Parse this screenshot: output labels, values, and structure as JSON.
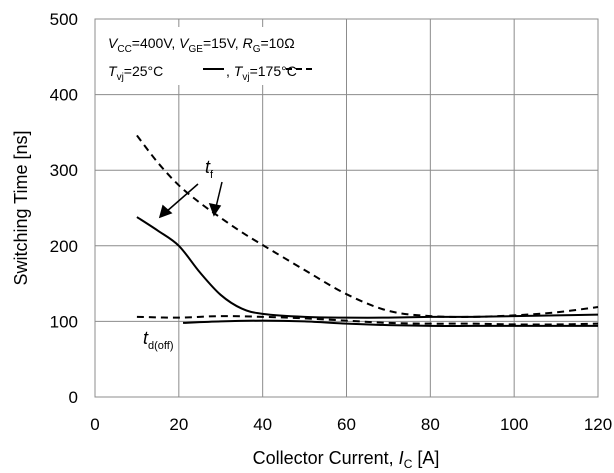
{
  "chart_data": {
    "type": "line",
    "xlim": [
      0,
      120
    ],
    "ylim": [
      0,
      500
    ],
    "x_ticks": [
      0,
      20,
      40,
      60,
      80,
      100,
      120
    ],
    "y_ticks": [
      0,
      100,
      200,
      300,
      400,
      500
    ],
    "grid": true,
    "legend_position": "top-left",
    "xlabel": {
      "main": "Collector Current, ",
      "var": "I",
      "sub": "C",
      "unit": " [A]"
    },
    "ylabel": "Switching Time [ns]",
    "conditions": {
      "vcc": {
        "var": "V",
        "sub": "CC",
        "val": "=400V, "
      },
      "vge": {
        "var": "V",
        "sub": "GE",
        "val": "=15V, "
      },
      "rg": {
        "var": "R",
        "sub": "G",
        "val": "=10Ω"
      }
    },
    "temperature_legend": {
      "tvj_25": {
        "var": "T",
        "sub": "vj",
        "val": "=25°C"
      },
      "sep": ", ",
      "tvj_175": {
        "var": "T",
        "sub": "vj",
        "val": "=175°C"
      }
    },
    "labels": {
      "tf": {
        "var": "t",
        "sub": "f"
      },
      "tdoff": {
        "var": "t",
        "sub": "d(off)"
      }
    },
    "series": [
      {
        "id": "tf-25",
        "style": "solid",
        "x": [
          10,
          15,
          20,
          25,
          30,
          35,
          40,
          50,
          60,
          70,
          80,
          90,
          100,
          110,
          120
        ],
        "y": [
          238,
          220,
          200,
          165,
          135,
          117,
          110,
          106,
          105,
          105,
          106,
          106,
          107,
          108,
          109
        ]
      },
      {
        "id": "tf-175",
        "style": "dashed",
        "x": [
          10,
          15,
          20,
          25,
          30,
          35,
          40,
          50,
          60,
          70,
          80,
          90,
          100,
          110,
          120
        ],
        "y": [
          346,
          310,
          280,
          257,
          237,
          218,
          201,
          168,
          136,
          114,
          107,
          106,
          108,
          112,
          119
        ]
      },
      {
        "id": "tdoff-25",
        "style": "solid",
        "x": [
          21,
          30,
          40,
          50,
          60,
          70,
          80,
          90,
          100,
          110,
          120
        ],
        "y": [
          98,
          100,
          101,
          100,
          97,
          95,
          94,
          94,
          94,
          94,
          94
        ]
      },
      {
        "id": "tdoff-175",
        "style": "dashed",
        "x": [
          10,
          20,
          30,
          40,
          50,
          60,
          70,
          80,
          90,
          100,
          110,
          120
        ],
        "y": [
          106,
          105,
          107,
          106,
          104,
          101,
          98,
          97,
          97,
          96,
          96,
          97
        ]
      }
    ]
  }
}
